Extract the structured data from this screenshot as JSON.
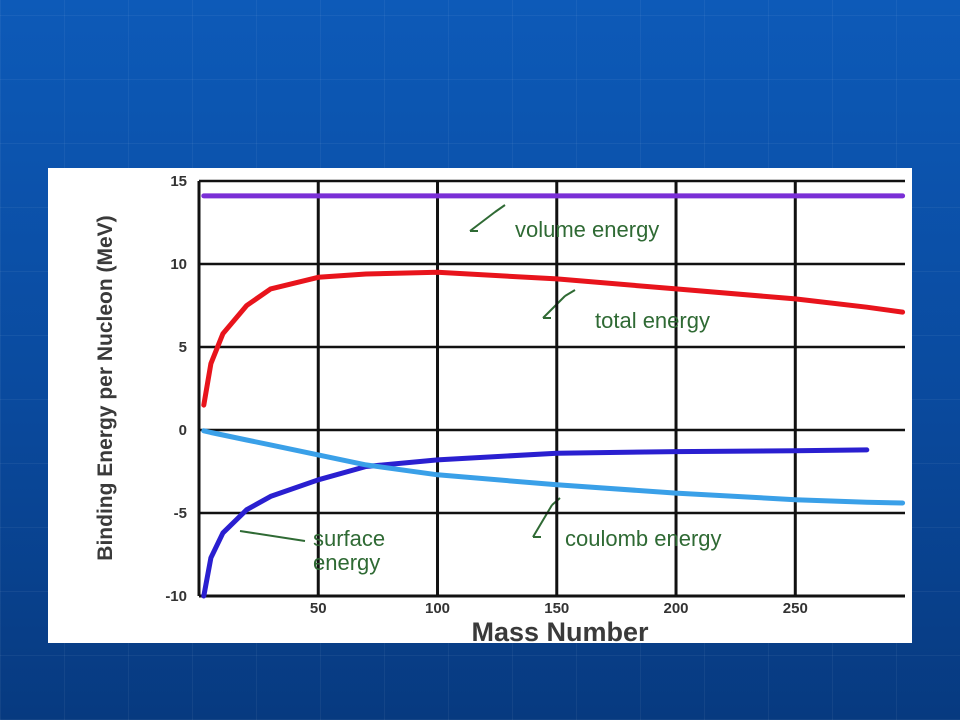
{
  "chart_data": {
    "type": "line",
    "x_label": "Mass Number",
    "y_label": "Binding Energy per Nucleon (MeV)",
    "x": [
      2,
      5,
      10,
      20,
      30,
      50,
      70,
      100,
      150,
      200,
      250,
      280,
      295
    ],
    "series": [
      {
        "name": "volume energy",
        "color": "#7a2fd6",
        "values": [
          14.1,
          14.1,
          14.1,
          14.1,
          14.1,
          14.1,
          14.1,
          14.1,
          14.1,
          14.1,
          14.1,
          14.1,
          14.1
        ]
      },
      {
        "name": "total energy",
        "color": "#e8141c",
        "values": [
          1.5,
          4,
          5.8,
          7.5,
          8.5,
          9.2,
          9.4,
          9.5,
          9.1,
          8.5,
          7.9,
          7.4,
          7.1
        ]
      },
      {
        "name": "surface energy",
        "color": "#2a1fd0",
        "values": [
          -10,
          -7.7,
          -6.2,
          -4.8,
          -4,
          -3,
          -2.2,
          -1.8,
          -1.4,
          -1.3,
          -1.25,
          -1.2,
          null
        ]
      },
      {
        "name": "coulomb energy",
        "color": "#3aa0e8",
        "values": [
          -0.05,
          -0.15,
          -0.3,
          -0.6,
          -0.9,
          -1.5,
          -2.1,
          -2.7,
          -3.3,
          -3.8,
          -4.2,
          -4.35,
          -4.4
        ]
      }
    ],
    "xlim": [
      0,
      296
    ],
    "xticks": [
      50,
      100,
      150,
      200,
      250
    ],
    "ylim": [
      -10,
      15
    ],
    "yticks": [
      -10,
      -5,
      0,
      5,
      10,
      15
    ],
    "grid": true
  }
}
